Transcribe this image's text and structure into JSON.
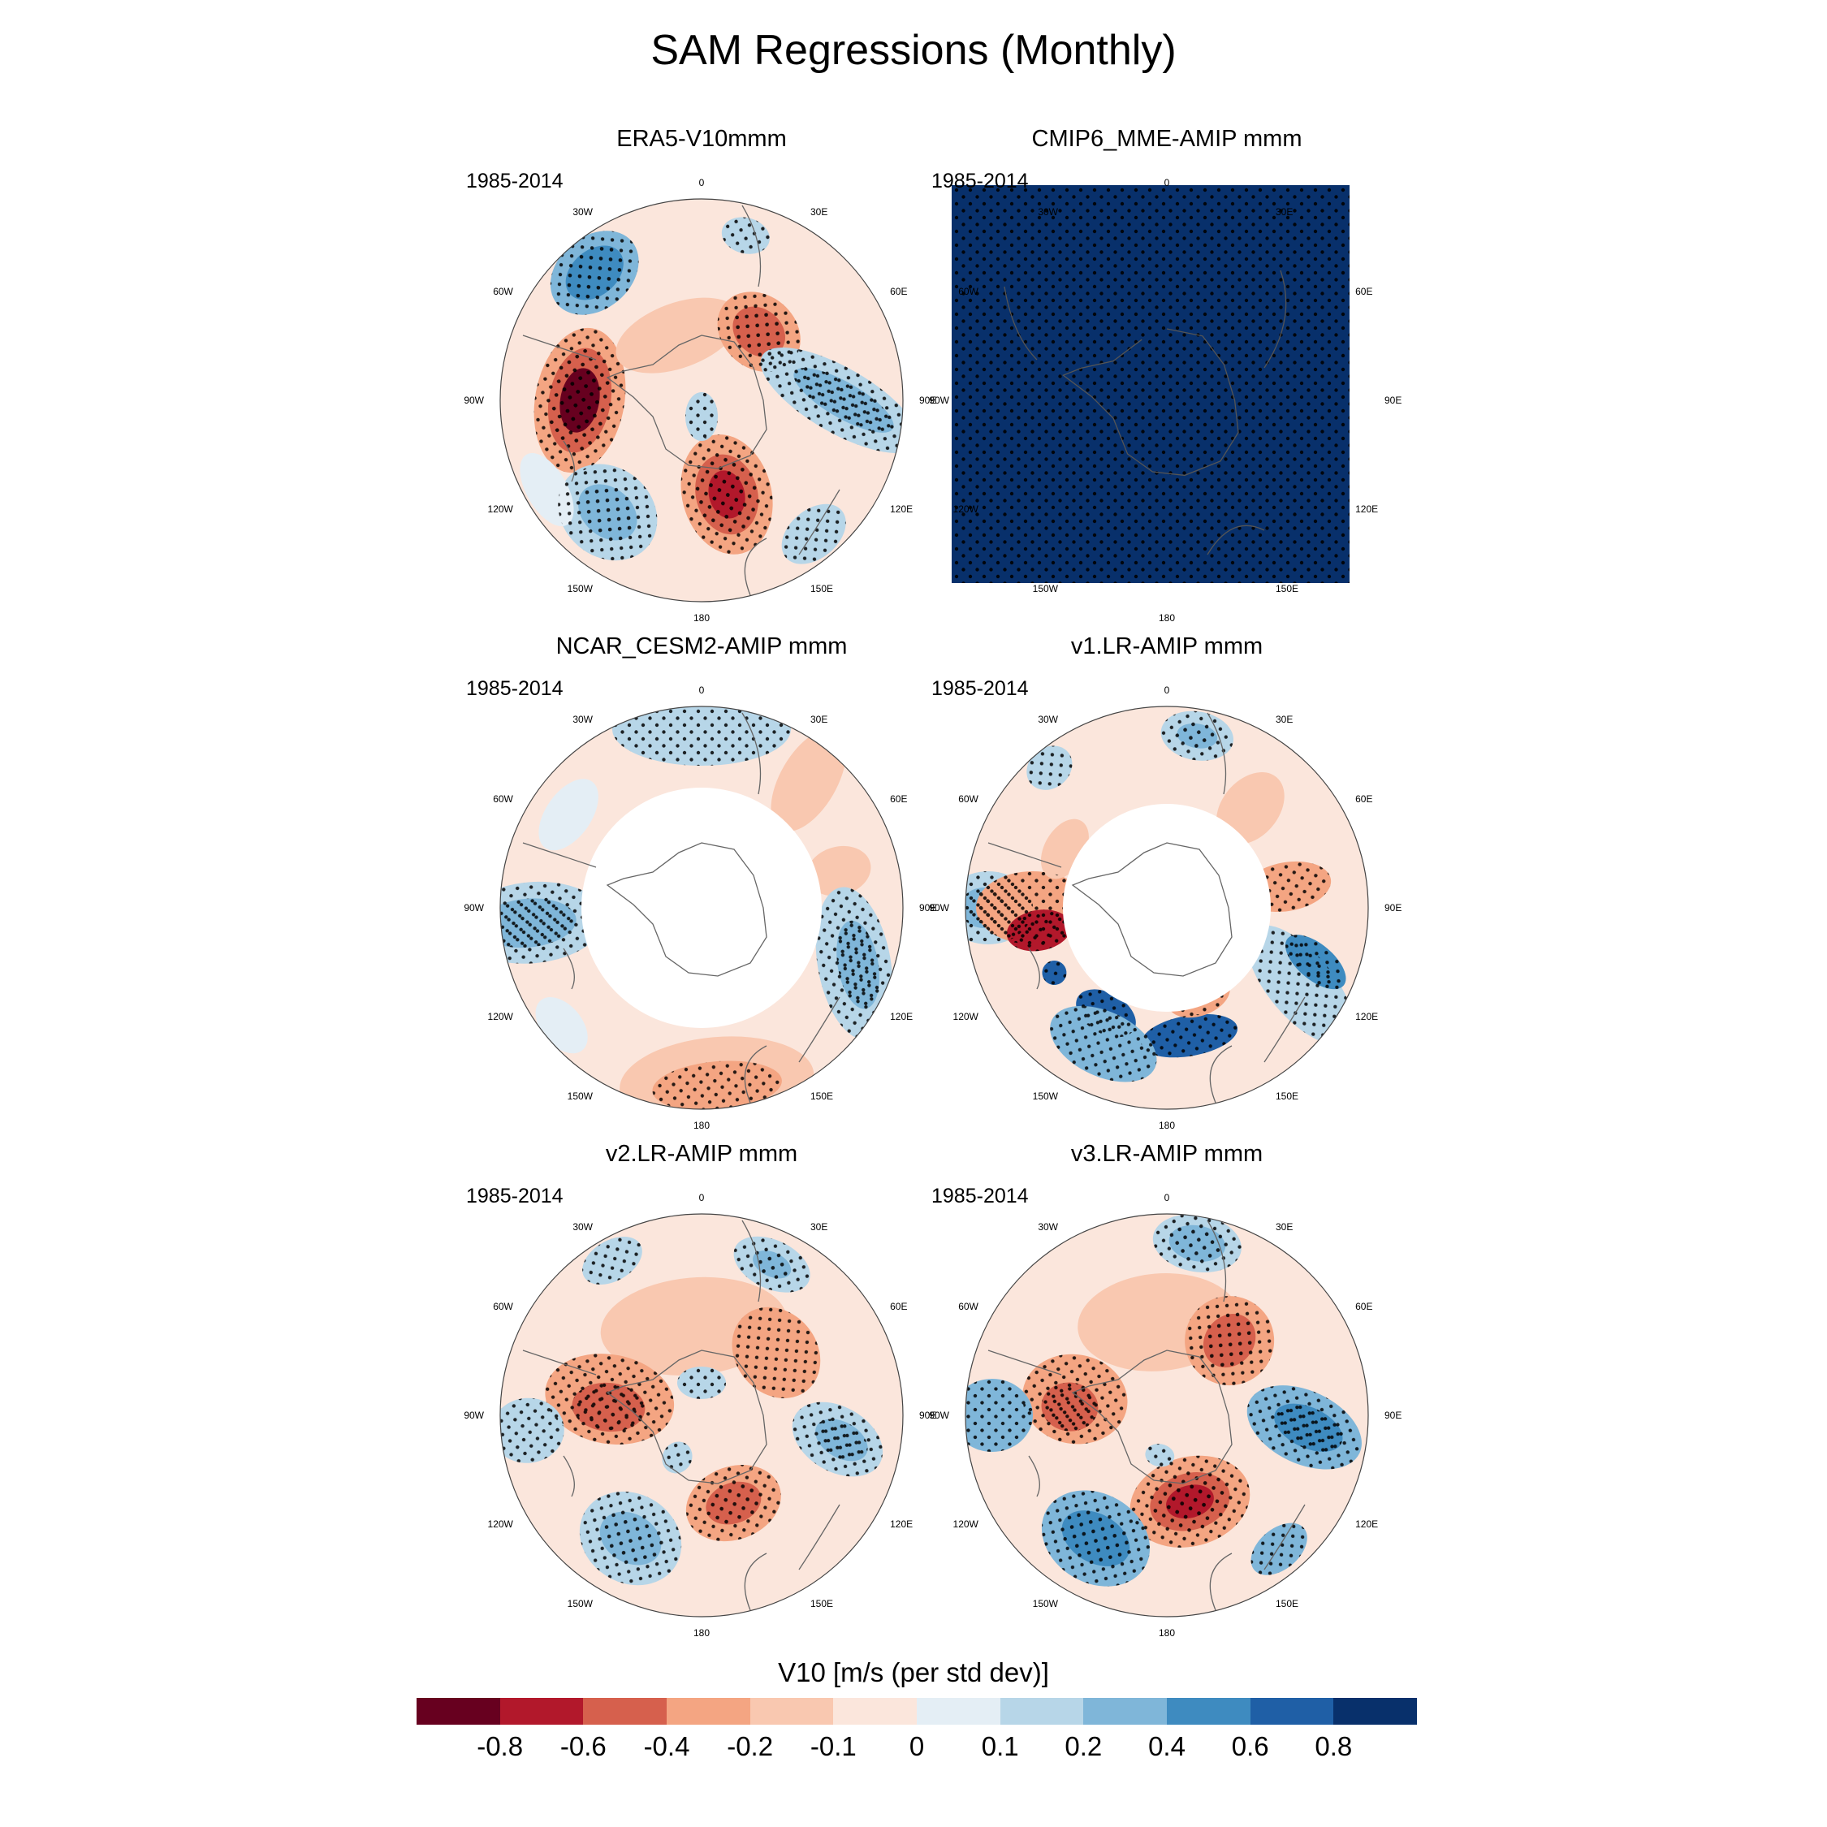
{
  "title": "SAM Regressions (Monthly)",
  "lon_labels": [
    "0",
    "30E",
    "60E",
    "90E",
    "120E",
    "150E",
    "180",
    "150W",
    "120W",
    "90W",
    "60W",
    "30W"
  ],
  "panels": [
    {
      "title": "ERA5-V10mmm",
      "period": "1985-2014",
      "style": "era5"
    },
    {
      "title": "CMIP6_MME-AMIP  mmm",
      "period": "1985-2014",
      "style": "mme"
    },
    {
      "title": "NCAR_CESM2-AMIP  mmm",
      "period": "1985-2014",
      "style": "cesm2"
    },
    {
      "title": "v1.LR-AMIP  mmm",
      "period": "1985-2014",
      "style": "v1"
    },
    {
      "title": "v2.LR-AMIP  mmm",
      "period": "1985-2014",
      "style": "v2"
    },
    {
      "title": "v3.LR-AMIP  mmm",
      "period": "1985-2014",
      "style": "v3"
    }
  ],
  "colorbar": {
    "title": "V10 [m/s (per std dev)]",
    "colors": [
      "#67001f",
      "#b2182b",
      "#d6604d",
      "#f4a582",
      "#f9c8b0",
      "#fbe6dc",
      "#e4eef5",
      "#b7d6e8",
      "#7fb6d9",
      "#3e8bc0",
      "#1f5fa6",
      "#08306b"
    ],
    "tick_labels": [
      "-0.8",
      "-0.6",
      "-0.4",
      "-0.2",
      "-0.1",
      "0",
      "0.1",
      "0.2",
      "0.4",
      "0.6",
      "0.8"
    ]
  }
}
